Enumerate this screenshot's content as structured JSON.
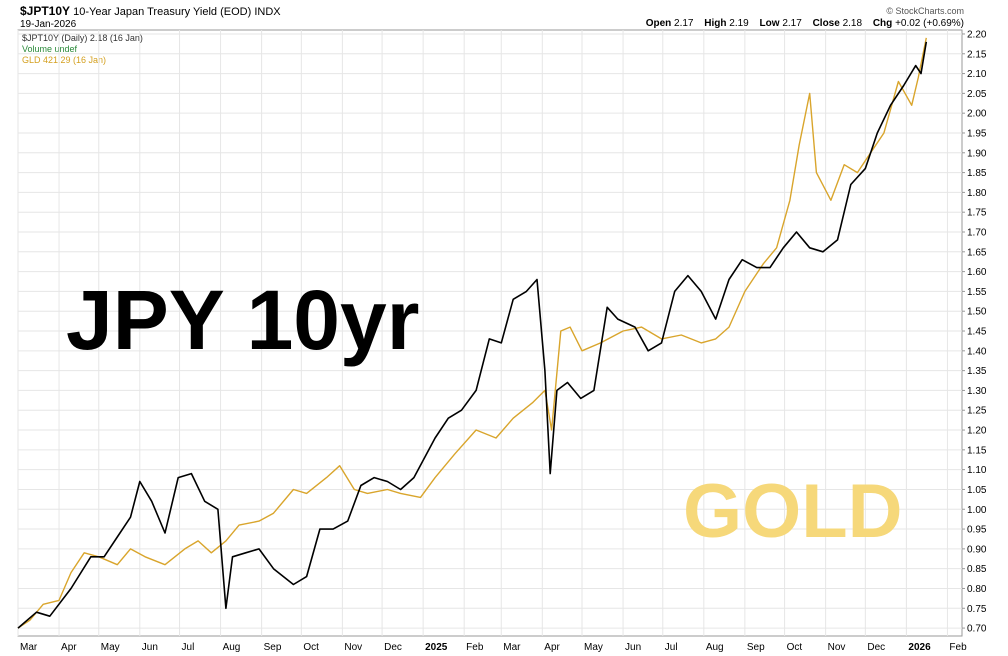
{
  "header": {
    "symbol": "$JPT10Y",
    "description": "10-Year Japan Treasury Yield (EOD)",
    "exchange": "INDX",
    "date": "19-Jan-2026",
    "brand": "© StockCharts.com",
    "ohlc": {
      "open_label": "Open",
      "open": "2.17",
      "high_label": "High",
      "high": "2.19",
      "low_label": "Low",
      "low": "2.17",
      "close_label": "Close",
      "close": "2.18",
      "chg_label": "Chg",
      "chg": "+0.02 (+0.69%)"
    }
  },
  "legend": {
    "jpt": "$JPT10Y (Daily) 2.18 (16 Jan)",
    "volume": "Volume undef",
    "gld": "GLD 421.29 (16 Jan)"
  },
  "annotations": {
    "jpy": "JPY 10yr",
    "gold": "GOLD"
  },
  "colors": {
    "jpt_line": "#000000",
    "gld_line": "#d9a52c",
    "grid": "#e6e6e6",
    "axis": "#999999"
  },
  "chart_data": {
    "type": "line",
    "y_axis": {
      "position": "right",
      "ylim": [
        0.68,
        2.21
      ],
      "ticks": [
        "0.70",
        "0.75",
        "0.80",
        "0.85",
        "0.90",
        "0.95",
        "1.00",
        "1.05",
        "1.10",
        "1.15",
        "1.20",
        "1.25",
        "1.30",
        "1.35",
        "1.40",
        "1.45",
        "1.50",
        "1.55",
        "1.60",
        "1.65",
        "1.70",
        "1.75",
        "1.80",
        "1.85",
        "1.90",
        "1.95",
        "2.00",
        "2.05",
        "2.10",
        "2.15",
        "2.20"
      ]
    },
    "x_axis": {
      "xlim": [
        "2024-03-01",
        "2026-02-12"
      ],
      "ticks": [
        {
          "date": "2024-03-01",
          "label": "Mar"
        },
        {
          "date": "2024-04-01",
          "label": "Apr"
        },
        {
          "date": "2024-05-01",
          "label": "May"
        },
        {
          "date": "2024-06-01",
          "label": "Jun"
        },
        {
          "date": "2024-07-01",
          "label": "Jul"
        },
        {
          "date": "2024-08-01",
          "label": "Aug"
        },
        {
          "date": "2024-09-01",
          "label": "Sep"
        },
        {
          "date": "2024-10-01",
          "label": "Oct"
        },
        {
          "date": "2024-11-01",
          "label": "Nov"
        },
        {
          "date": "2024-12-01",
          "label": "Dec"
        },
        {
          "date": "2025-01-01",
          "label": "2025"
        },
        {
          "date": "2025-02-01",
          "label": "Feb"
        },
        {
          "date": "2025-03-01",
          "label": "Mar"
        },
        {
          "date": "2025-04-01",
          "label": "Apr"
        },
        {
          "date": "2025-05-01",
          "label": "May"
        },
        {
          "date": "2025-06-01",
          "label": "Jun"
        },
        {
          "date": "2025-07-01",
          "label": "Jul"
        },
        {
          "date": "2025-08-01",
          "label": "Aug"
        },
        {
          "date": "2025-09-01",
          "label": "Sep"
        },
        {
          "date": "2025-10-01",
          "label": "Oct"
        },
        {
          "date": "2025-11-01",
          "label": "Nov"
        },
        {
          "date": "2025-12-01",
          "label": "Dec"
        },
        {
          "date": "2026-01-01",
          "label": "2026"
        },
        {
          "date": "2026-02-01",
          "label": "Feb"
        }
      ]
    },
    "series": [
      {
        "name": "$JPT10Y",
        "points": [
          [
            "2024-03-01",
            0.7
          ],
          [
            "2024-03-15",
            0.74
          ],
          [
            "2024-03-25",
            0.73
          ],
          [
            "2024-04-10",
            0.8
          ],
          [
            "2024-04-25",
            0.88
          ],
          [
            "2024-05-05",
            0.88
          ],
          [
            "2024-05-15",
            0.93
          ],
          [
            "2024-05-25",
            0.98
          ],
          [
            "2024-06-01",
            1.07
          ],
          [
            "2024-06-10",
            1.02
          ],
          [
            "2024-06-20",
            0.94
          ],
          [
            "2024-06-30",
            1.08
          ],
          [
            "2024-07-10",
            1.09
          ],
          [
            "2024-07-20",
            1.02
          ],
          [
            "2024-07-30",
            1.0
          ],
          [
            "2024-08-05",
            0.75
          ],
          [
            "2024-08-10",
            0.88
          ],
          [
            "2024-08-20",
            0.89
          ],
          [
            "2024-08-30",
            0.9
          ],
          [
            "2024-09-10",
            0.85
          ],
          [
            "2024-09-25",
            0.81
          ],
          [
            "2024-10-05",
            0.83
          ],
          [
            "2024-10-15",
            0.95
          ],
          [
            "2024-10-25",
            0.95
          ],
          [
            "2024-11-05",
            0.97
          ],
          [
            "2024-11-15",
            1.06
          ],
          [
            "2024-11-25",
            1.08
          ],
          [
            "2024-12-05",
            1.07
          ],
          [
            "2024-12-15",
            1.05
          ],
          [
            "2024-12-25",
            1.08
          ],
          [
            "2025-01-10",
            1.18
          ],
          [
            "2025-01-20",
            1.23
          ],
          [
            "2025-01-30",
            1.25
          ],
          [
            "2025-02-10",
            1.3
          ],
          [
            "2025-02-20",
            1.43
          ],
          [
            "2025-03-01",
            1.42
          ],
          [
            "2025-03-10",
            1.53
          ],
          [
            "2025-03-20",
            1.55
          ],
          [
            "2025-03-28",
            1.58
          ],
          [
            "2025-04-03",
            1.35
          ],
          [
            "2025-04-07",
            1.09
          ],
          [
            "2025-04-12",
            1.3
          ],
          [
            "2025-04-20",
            1.32
          ],
          [
            "2025-04-30",
            1.28
          ],
          [
            "2025-05-10",
            1.3
          ],
          [
            "2025-05-20",
            1.51
          ],
          [
            "2025-05-28",
            1.48
          ],
          [
            "2025-06-10",
            1.46
          ],
          [
            "2025-06-20",
            1.4
          ],
          [
            "2025-06-30",
            1.42
          ],
          [
            "2025-07-10",
            1.55
          ],
          [
            "2025-07-20",
            1.59
          ],
          [
            "2025-07-30",
            1.55
          ],
          [
            "2025-08-10",
            1.48
          ],
          [
            "2025-08-20",
            1.58
          ],
          [
            "2025-08-30",
            1.63
          ],
          [
            "2025-09-10",
            1.61
          ],
          [
            "2025-09-20",
            1.61
          ],
          [
            "2025-09-30",
            1.66
          ],
          [
            "2025-10-10",
            1.7
          ],
          [
            "2025-10-20",
            1.66
          ],
          [
            "2025-10-30",
            1.65
          ],
          [
            "2025-11-10",
            1.68
          ],
          [
            "2025-11-20",
            1.82
          ],
          [
            "2025-12-01",
            1.86
          ],
          [
            "2025-12-10",
            1.95
          ],
          [
            "2025-12-20",
            2.02
          ],
          [
            "2025-12-30",
            2.07
          ],
          [
            "2026-01-08",
            2.12
          ],
          [
            "2026-01-12",
            2.1
          ],
          [
            "2026-01-16",
            2.18
          ]
        ]
      },
      {
        "name": "GLD",
        "points": [
          [
            "2024-03-01",
            0.7
          ],
          [
            "2024-03-10",
            0.72
          ],
          [
            "2024-03-20",
            0.76
          ],
          [
            "2024-04-01",
            0.77
          ],
          [
            "2024-04-10",
            0.84
          ],
          [
            "2024-04-20",
            0.89
          ],
          [
            "2024-05-01",
            0.88
          ],
          [
            "2024-05-15",
            0.86
          ],
          [
            "2024-05-25",
            0.9
          ],
          [
            "2024-06-05",
            0.88
          ],
          [
            "2024-06-20",
            0.86
          ],
          [
            "2024-07-05",
            0.9
          ],
          [
            "2024-07-15",
            0.92
          ],
          [
            "2024-07-25",
            0.89
          ],
          [
            "2024-08-05",
            0.92
          ],
          [
            "2024-08-15",
            0.96
          ],
          [
            "2024-08-30",
            0.97
          ],
          [
            "2024-09-10",
            0.99
          ],
          [
            "2024-09-25",
            1.05
          ],
          [
            "2024-10-05",
            1.04
          ],
          [
            "2024-10-20",
            1.08
          ],
          [
            "2024-10-30",
            1.11
          ],
          [
            "2024-11-10",
            1.05
          ],
          [
            "2024-11-20",
            1.04
          ],
          [
            "2024-12-05",
            1.05
          ],
          [
            "2024-12-15",
            1.04
          ],
          [
            "2024-12-30",
            1.03
          ],
          [
            "2025-01-10",
            1.08
          ],
          [
            "2025-01-25",
            1.14
          ],
          [
            "2025-02-10",
            1.2
          ],
          [
            "2025-02-25",
            1.18
          ],
          [
            "2025-03-10",
            1.23
          ],
          [
            "2025-03-25",
            1.27
          ],
          [
            "2025-04-03",
            1.3
          ],
          [
            "2025-04-08",
            1.2
          ],
          [
            "2025-04-15",
            1.45
          ],
          [
            "2025-04-22",
            1.46
          ],
          [
            "2025-05-01",
            1.4
          ],
          [
            "2025-05-15",
            1.42
          ],
          [
            "2025-06-01",
            1.45
          ],
          [
            "2025-06-15",
            1.46
          ],
          [
            "2025-06-30",
            1.43
          ],
          [
            "2025-07-15",
            1.44
          ],
          [
            "2025-07-30",
            1.42
          ],
          [
            "2025-08-10",
            1.43
          ],
          [
            "2025-08-20",
            1.46
          ],
          [
            "2025-09-01",
            1.55
          ],
          [
            "2025-09-15",
            1.62
          ],
          [
            "2025-09-25",
            1.66
          ],
          [
            "2025-10-05",
            1.78
          ],
          [
            "2025-10-12",
            1.92
          ],
          [
            "2025-10-20",
            2.05
          ],
          [
            "2025-10-25",
            1.85
          ],
          [
            "2025-11-05",
            1.78
          ],
          [
            "2025-11-15",
            1.87
          ],
          [
            "2025-11-25",
            1.85
          ],
          [
            "2025-12-05",
            1.9
          ],
          [
            "2025-12-15",
            1.95
          ],
          [
            "2025-12-26",
            2.08
          ],
          [
            "2026-01-05",
            2.02
          ],
          [
            "2026-01-10",
            2.09
          ],
          [
            "2026-01-16",
            2.19
          ]
        ]
      }
    ]
  }
}
